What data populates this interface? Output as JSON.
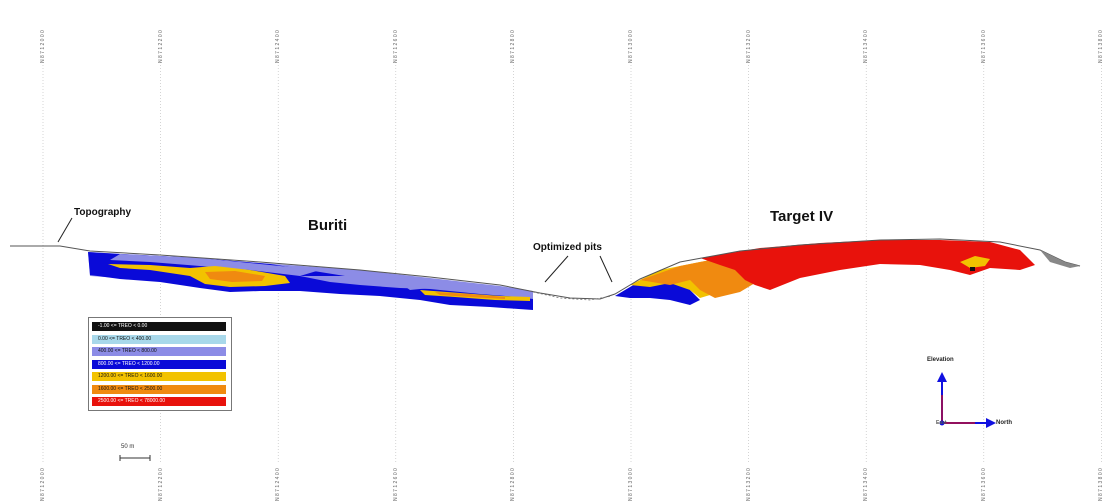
{
  "colors": {
    "grid": "#b8b8b8",
    "topography": "#555555",
    "class_black": "#111111",
    "class_lightblue": "#a8d8ea",
    "class_lavender": "#8c8ce6",
    "class_blue": "#0a0ad8",
    "class_yellow": "#f2c200",
    "class_orange": "#f08a10",
    "class_red": "#e8120c",
    "axis_blue": "#1010e0",
    "axis_red": "#e01010"
  },
  "northing_ticks": {
    "top": [
      "N 8 7 1 2 0 0 0",
      "N 8 7 1 2 2 0 0",
      "N 8 7 1 2 4 0 0",
      "N 8 7 1 2 6 0 0",
      "N 8 7 1 2 8 0 0",
      "N 8 7 1 3 0 0 0",
      "N 8 7 1 3 2 0 0",
      "N 8 7 1 3 4 0 0",
      "N 8 7 1 3 6 0 0",
      "N 8 7 1 3 8 0 0"
    ],
    "bottom": [
      "N 8 7 1 2 0 0 0",
      "N 8 7 1 2 2 0 0",
      "N 8 7 1 2 4 0 0",
      "N 8 7 1 2 6 0 0",
      "N 8 7 1 2 8 0 0",
      "N 8 7 1 3 0 0 0",
      "N 8 7 1 3 2 0 0",
      "N 8 7 1 3 4 0 0",
      "N 8 7 1 3 6 0 0",
      "N 8 7 1 3 8 0 0"
    ]
  },
  "annotations": {
    "topography": "Topography",
    "buriti": "Buriti",
    "target_iv": "Target IV",
    "optimized_pits": "Optimized pits"
  },
  "legend": [
    {
      "label": "-1.00 <= TREO < 0.00",
      "color": "#111111"
    },
    {
      "label": "0.00 <= TREO < 400.00",
      "color": "#a8d8ea"
    },
    {
      "label": "400.00 <= TREO < 800.00",
      "color": "#8c8ce6"
    },
    {
      "label": "800.00 <= TREO < 1200.00",
      "color": "#0a0ad8"
    },
    {
      "label": "1200.00 <= TREO < 1600.00",
      "color": "#f2c200"
    },
    {
      "label": "1600.00 <= TREO < 2500.00",
      "color": "#f08a10"
    },
    {
      "label": "2500.00 <= TREO < 78000.00",
      "color": "#e8120c"
    }
  ],
  "scale_bar": {
    "label": "50 m"
  },
  "orientation": {
    "up_label": "Elevation",
    "right_label": "North",
    "origin_label": "East"
  }
}
